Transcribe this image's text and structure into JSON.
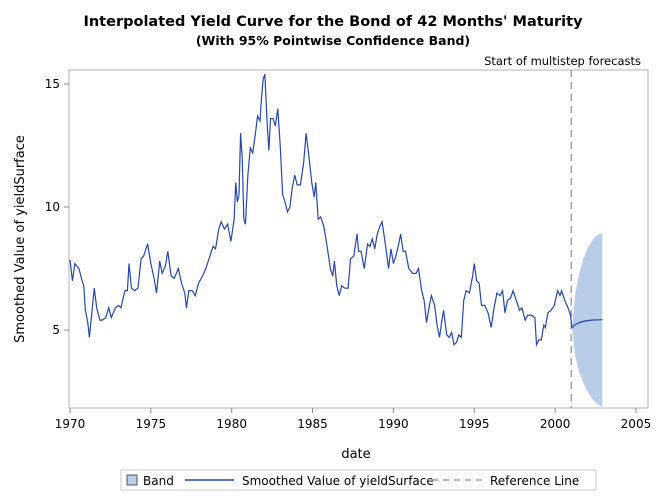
{
  "chart_data": {
    "type": "line",
    "title": "Interpolated Yield Curve for the Bond of 42 Months' Maturity",
    "subtitle": "(With 95% Pointwise Confidence Band)",
    "xlabel": "date",
    "ylabel": "Smoothed Value of yieldSurface",
    "xlim": [
      1970,
      2006
    ],
    "ylim": [
      1.83,
      15.57
    ],
    "xticks": [
      "1970",
      "1975",
      "1980",
      "1985",
      "1990",
      "1995",
      "2000",
      "2005"
    ],
    "yticks": [
      "5",
      "10",
      "15"
    ],
    "grid": false,
    "legend_position": "bottom",
    "legend": [
      "Band",
      "Smoothed Value of yieldSurface",
      "Reference Line"
    ],
    "reference_line": {
      "x": 2001.0,
      "label": "Start of multistep forecasts"
    },
    "colors": {
      "line": "#2547a8",
      "band": "#b9cde8",
      "reference": "#a0a0a0"
    },
    "series": [
      {
        "name": "Smoothed Value of yieldSurface",
        "points": [
          [
            1970.0,
            7.85
          ],
          [
            1970.15,
            7.0
          ],
          [
            1970.3,
            7.7
          ],
          [
            1970.55,
            7.5
          ],
          [
            1970.75,
            7.0
          ],
          [
            1970.85,
            6.8
          ],
          [
            1970.95,
            5.8
          ],
          [
            1971.1,
            5.3
          ],
          [
            1971.2,
            4.7
          ],
          [
            1971.35,
            5.7
          ],
          [
            1971.5,
            6.7
          ],
          [
            1971.65,
            5.9
          ],
          [
            1971.85,
            5.4
          ],
          [
            1972.0,
            5.4
          ],
          [
            1972.2,
            5.5
          ],
          [
            1972.4,
            5.9
          ],
          [
            1972.55,
            5.5
          ],
          [
            1972.8,
            5.9
          ],
          [
            1973.0,
            6.0
          ],
          [
            1973.15,
            5.9
          ],
          [
            1973.4,
            6.6
          ],
          [
            1973.55,
            6.6
          ],
          [
            1973.65,
            7.7
          ],
          [
            1973.8,
            6.7
          ],
          [
            1974.0,
            6.6
          ],
          [
            1974.2,
            6.7
          ],
          [
            1974.4,
            7.9
          ],
          [
            1974.55,
            8.0
          ],
          [
            1974.8,
            8.5
          ],
          [
            1975.0,
            7.7
          ],
          [
            1975.2,
            7.1
          ],
          [
            1975.35,
            6.5
          ],
          [
            1975.55,
            7.8
          ],
          [
            1975.7,
            7.3
          ],
          [
            1975.9,
            7.6
          ],
          [
            1976.05,
            8.2
          ],
          [
            1976.25,
            7.2
          ],
          [
            1976.45,
            7.1
          ],
          [
            1976.7,
            7.5
          ],
          [
            1976.9,
            6.9
          ],
          [
            1977.1,
            6.5
          ],
          [
            1977.2,
            5.9
          ],
          [
            1977.35,
            6.6
          ],
          [
            1977.55,
            6.6
          ],
          [
            1977.75,
            6.4
          ],
          [
            1977.95,
            6.9
          ],
          [
            1978.2,
            7.2
          ],
          [
            1978.4,
            7.5
          ],
          [
            1978.6,
            7.9
          ],
          [
            1978.85,
            8.4
          ],
          [
            1979.0,
            8.3
          ],
          [
            1979.2,
            9.1
          ],
          [
            1979.35,
            9.4
          ],
          [
            1979.55,
            9.1
          ],
          [
            1979.75,
            9.3
          ],
          [
            1979.95,
            8.6
          ],
          [
            1980.15,
            9.5
          ],
          [
            1980.25,
            11.0
          ],
          [
            1980.35,
            10.2
          ],
          [
            1980.45,
            10.5
          ],
          [
            1980.55,
            13.0
          ],
          [
            1980.65,
            12.0
          ],
          [
            1980.75,
            9.5
          ],
          [
            1980.85,
            9.3
          ],
          [
            1981.0,
            11.3
          ],
          [
            1981.15,
            12.4
          ],
          [
            1981.3,
            12.2
          ],
          [
            1981.45,
            12.9
          ],
          [
            1981.6,
            13.7
          ],
          [
            1981.75,
            13.5
          ],
          [
            1981.85,
            14.5
          ],
          [
            1981.95,
            15.2
          ],
          [
            1982.05,
            15.4
          ],
          [
            1982.2,
            13.3
          ],
          [
            1982.3,
            12.3
          ],
          [
            1982.4,
            13.6
          ],
          [
            1982.55,
            13.6
          ],
          [
            1982.7,
            13.3
          ],
          [
            1982.85,
            14.0
          ],
          [
            1983.0,
            12.5
          ],
          [
            1983.15,
            10.5
          ],
          [
            1983.3,
            10.2
          ],
          [
            1983.45,
            9.8
          ],
          [
            1983.6,
            10.0
          ],
          [
            1983.75,
            10.8
          ],
          [
            1983.9,
            11.3
          ],
          [
            1984.05,
            10.9
          ],
          [
            1984.25,
            10.9
          ],
          [
            1984.45,
            11.8
          ],
          [
            1984.6,
            13.0
          ],
          [
            1984.75,
            12.2
          ],
          [
            1984.95,
            11.0
          ],
          [
            1985.1,
            10.4
          ],
          [
            1985.2,
            11.0
          ],
          [
            1985.35,
            9.5
          ],
          [
            1985.5,
            9.6
          ],
          [
            1985.7,
            9.2
          ],
          [
            1985.9,
            8.4
          ],
          [
            1986.1,
            7.5
          ],
          [
            1986.25,
            7.2
          ],
          [
            1986.35,
            7.8
          ],
          [
            1986.5,
            6.8
          ],
          [
            1986.65,
            6.4
          ],
          [
            1986.8,
            6.8
          ],
          [
            1987.0,
            6.7
          ],
          [
            1987.2,
            6.7
          ],
          [
            1987.35,
            7.9
          ],
          [
            1987.55,
            8.0
          ],
          [
            1987.75,
            8.9
          ],
          [
            1987.85,
            8.2
          ],
          [
            1988.0,
            8.2
          ],
          [
            1988.2,
            7.5
          ],
          [
            1988.4,
            8.5
          ],
          [
            1988.55,
            8.4
          ],
          [
            1988.7,
            8.7
          ],
          [
            1988.85,
            8.3
          ],
          [
            1989.0,
            8.9
          ],
          [
            1989.15,
            9.2
          ],
          [
            1989.3,
            9.4
          ],
          [
            1989.5,
            8.5
          ],
          [
            1989.7,
            7.5
          ],
          [
            1989.85,
            8.3
          ],
          [
            1990.0,
            7.7
          ],
          [
            1990.15,
            8.0
          ],
          [
            1990.3,
            8.4
          ],
          [
            1990.45,
            8.9
          ],
          [
            1990.6,
            8.2
          ],
          [
            1990.75,
            8.2
          ],
          [
            1990.95,
            7.5
          ],
          [
            1991.2,
            7.3
          ],
          [
            1991.4,
            7.3
          ],
          [
            1991.55,
            7.5
          ],
          [
            1991.75,
            6.6
          ],
          [
            1991.9,
            6.2
          ],
          [
            1992.05,
            5.3
          ],
          [
            1992.2,
            5.9
          ],
          [
            1992.35,
            6.4
          ],
          [
            1992.55,
            6.0
          ],
          [
            1992.7,
            5.2
          ],
          [
            1992.85,
            4.7
          ],
          [
            1993.0,
            5.4
          ],
          [
            1993.1,
            5.8
          ],
          [
            1993.3,
            4.8
          ],
          [
            1993.45,
            4.7
          ],
          [
            1993.6,
            4.9
          ],
          [
            1993.75,
            4.4
          ],
          [
            1993.9,
            4.5
          ],
          [
            1994.05,
            4.8
          ],
          [
            1994.2,
            4.7
          ],
          [
            1994.35,
            6.2
          ],
          [
            1994.5,
            6.6
          ],
          [
            1994.7,
            6.5
          ],
          [
            1994.9,
            7.2
          ],
          [
            1995.0,
            7.7
          ],
          [
            1995.15,
            7.0
          ],
          [
            1995.3,
            6.9
          ],
          [
            1995.45,
            6.0
          ],
          [
            1995.65,
            6.0
          ],
          [
            1995.85,
            5.7
          ],
          [
            1996.05,
            5.1
          ],
          [
            1996.2,
            5.8
          ],
          [
            1996.4,
            6.5
          ],
          [
            1996.6,
            6.4
          ],
          [
            1996.75,
            6.6
          ],
          [
            1996.9,
            5.7
          ],
          [
            1997.05,
            6.2
          ],
          [
            1997.25,
            6.3
          ],
          [
            1997.4,
            6.6
          ],
          [
            1997.6,
            6.2
          ],
          [
            1997.8,
            5.8
          ],
          [
            1997.95,
            5.9
          ],
          [
            1998.15,
            5.4
          ],
          [
            1998.3,
            5.6
          ],
          [
            1998.55,
            5.6
          ],
          [
            1998.75,
            5.5
          ],
          [
            1998.85,
            4.4
          ],
          [
            1999.0,
            4.6
          ],
          [
            1999.15,
            4.6
          ],
          [
            1999.3,
            5.2
          ],
          [
            1999.4,
            5.1
          ],
          [
            1999.55,
            5.7
          ],
          [
            1999.75,
            5.8
          ],
          [
            1999.95,
            6.0
          ],
          [
            2000.05,
            6.3
          ],
          [
            2000.15,
            6.6
          ],
          [
            2000.3,
            6.4
          ],
          [
            2000.4,
            6.6
          ],
          [
            2000.6,
            6.2
          ],
          [
            2000.8,
            5.9
          ],
          [
            2000.95,
            5.6
          ],
          [
            2001.05,
            5.1
          ],
          [
            2001.25,
            5.22
          ],
          [
            2001.5,
            5.3
          ],
          [
            2001.75,
            5.35
          ],
          [
            2002.0,
            5.38
          ],
          [
            2002.25,
            5.4
          ],
          [
            2002.5,
            5.41
          ],
          [
            2002.92,
            5.42
          ]
        ]
      },
      {
        "name": "Band",
        "lower": [
          [
            2001.05,
            5.1
          ],
          [
            2001.25,
            3.9
          ],
          [
            2001.5,
            3.3
          ],
          [
            2001.75,
            2.85
          ],
          [
            2002.0,
            2.5
          ],
          [
            2002.25,
            2.25
          ],
          [
            2002.5,
            2.05
          ],
          [
            2002.92,
            1.85
          ]
        ],
        "upper": [
          [
            2001.05,
            5.1
          ],
          [
            2001.25,
            6.5
          ],
          [
            2001.5,
            7.3
          ],
          [
            2001.75,
            7.9
          ],
          [
            2002.0,
            8.3
          ],
          [
            2002.25,
            8.6
          ],
          [
            2002.5,
            8.8
          ],
          [
            2002.92,
            8.95
          ]
        ]
      }
    ]
  }
}
